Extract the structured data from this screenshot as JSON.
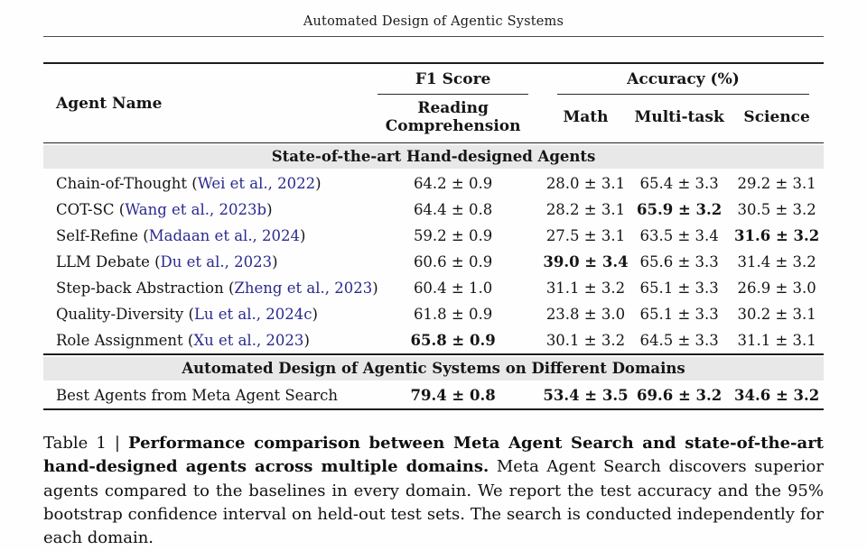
{
  "running_header": "Automated Design of Agentic Systems",
  "colors": {
    "link_blue": "#2a2a8e",
    "band_gray": "#e8e8e8",
    "rule_black": "#1c1c1c"
  },
  "table": {
    "headers": {
      "agent_name": "Agent Name",
      "group_f1": "F1 Score",
      "group_accuracy": "Accuracy (%)",
      "sub_rc": "Reading Comprehension",
      "sub_math": "Math",
      "sub_multi": "Multi-task",
      "sub_science": "Science"
    },
    "sections": [
      {
        "title": "State-of-the-art Hand-designed Agents",
        "rows": [
          {
            "name": "Chain-of-Thought",
            "cite": "Wei et al., 2022",
            "values": [
              "64.2 ± 0.9",
              "28.0 ± 3.1",
              "65.4 ± 3.3",
              "29.2 ± 3.1"
            ],
            "bold": [
              false,
              false,
              false,
              false
            ]
          },
          {
            "name": "COT-SC",
            "cite": "Wang et al., 2023b",
            "values": [
              "64.4 ± 0.8",
              "28.2 ± 3.1",
              "65.9 ± 3.2",
              "30.5 ± 3.2"
            ],
            "bold": [
              false,
              false,
              true,
              false
            ]
          },
          {
            "name": "Self-Refine",
            "cite": "Madaan et al., 2024",
            "values": [
              "59.2 ± 0.9",
              "27.5 ± 3.1",
              "63.5 ± 3.4",
              "31.6 ± 3.2"
            ],
            "bold": [
              false,
              false,
              false,
              true
            ]
          },
          {
            "name": "LLM Debate",
            "cite": "Du et al., 2023",
            "values": [
              "60.6 ± 0.9",
              "39.0 ± 3.4",
              "65.6 ± 3.3",
              "31.4 ± 3.2"
            ],
            "bold": [
              false,
              true,
              false,
              false
            ]
          },
          {
            "name": "Step-back Abstraction",
            "cite": "Zheng et al., 2023",
            "values": [
              "60.4 ± 1.0",
              "31.1 ± 3.2",
              "65.1 ± 3.3",
              "26.9 ± 3.0"
            ],
            "bold": [
              false,
              false,
              false,
              false
            ]
          },
          {
            "name": "Quality-Diversity",
            "cite": "Lu et al., 2024c",
            "values": [
              "61.8 ± 0.9",
              "23.8 ± 3.0",
              "65.1 ± 3.3",
              "30.2 ± 3.1"
            ],
            "bold": [
              false,
              false,
              false,
              false
            ]
          },
          {
            "name": "Role Assignment",
            "cite": "Xu et al., 2023",
            "values": [
              "65.8 ± 0.9",
              "30.1 ± 3.2",
              "64.5 ± 3.3",
              "31.1 ± 3.1"
            ],
            "bold": [
              true,
              false,
              false,
              false
            ]
          }
        ]
      },
      {
        "title": "Automated Design of Agentic Systems on Different Domains",
        "rows": [
          {
            "name": "Best Agents from Meta Agent Search",
            "cite": null,
            "values": [
              "79.4 ± 0.8",
              "53.4 ± 3.5",
              "69.6 ± 3.2",
              "34.6 ± 3.2"
            ],
            "bold": [
              true,
              true,
              true,
              true
            ]
          }
        ]
      }
    ]
  },
  "caption": {
    "label": "Table 1 | ",
    "bold_text": "Performance comparison between Meta Agent Search and state-of-the-art hand-designed agents across multiple domains.",
    "rest": " Meta Agent Search discovers superior agents compared to the baselines in every domain. We report the test accuracy and the 95% bootstrap confidence interval on held-out test sets. The search is conducted independently for each domain."
  }
}
